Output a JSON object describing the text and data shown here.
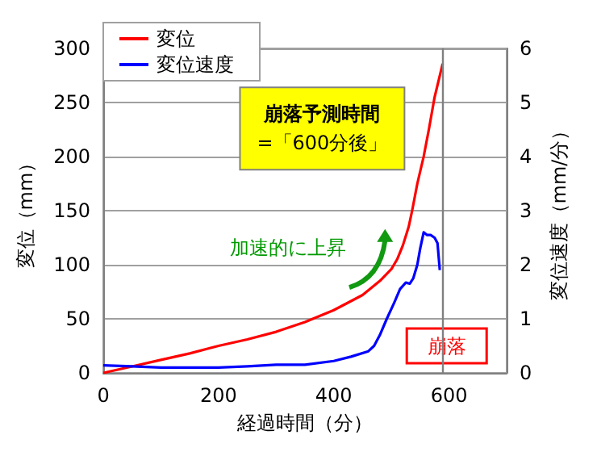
{
  "chart_data": {
    "type": "line",
    "xlabel": "経過時間（分）",
    "ylabel": "変位（mm）",
    "y2label": "変位速度（mm/分）",
    "xlim": [
      0,
      700
    ],
    "xticks": [
      0,
      200,
      400,
      600
    ],
    "ylim": [
      0,
      300
    ],
    "yticks": [
      0,
      50,
      100,
      150,
      200,
      250,
      300
    ],
    "y2lim": [
      0,
      6
    ],
    "y2ticks": [
      0,
      1,
      2,
      3,
      4,
      5,
      6
    ],
    "grid": "y",
    "legend": "top left",
    "marker": "none",
    "line_style": "solid",
    "series": [
      {
        "name": "変位",
        "color": "#ff0000",
        "x": [
          0,
          50,
          100,
          150,
          200,
          250,
          300,
          350,
          400,
          450,
          480,
          500,
          510,
          520,
          530,
          536,
          545,
          556,
          565,
          575,
          589
        ],
        "values": [
          0,
          6,
          12,
          18,
          25,
          31,
          38,
          47,
          58,
          72,
          85,
          96,
          105,
          118,
          135,
          150,
          175,
          200,
          225,
          255,
          286
        ]
      },
      {
        "name": "変位速度",
        "color": "#0000ff",
        "axis": "y2",
        "x": [
          0,
          50,
          100,
          150,
          200,
          250,
          300,
          350,
          400,
          430,
          460,
          470,
          480,
          492,
          505,
          515,
          525,
          532,
          538,
          545,
          550,
          556,
          562,
          568,
          575,
          580,
          584
        ],
        "values": [
          0.14,
          0.12,
          0.1,
          0.1,
          0.1,
          0.12,
          0.15,
          0.15,
          0.22,
          0.3,
          0.4,
          0.5,
          0.7,
          1.0,
          1.3,
          1.55,
          1.67,
          1.65,
          1.75,
          2.0,
          2.3,
          2.6,
          2.55,
          2.55,
          2.5,
          2.4,
          1.9
        ]
      }
    ],
    "ref_lines": [
      {
        "axis": "x",
        "value": 588,
        "color": "#808080"
      }
    ],
    "annotations": [
      "崩落予測時間\n=「600分後」",
      "加速的に上昇",
      "崩落"
    ]
  }
}
